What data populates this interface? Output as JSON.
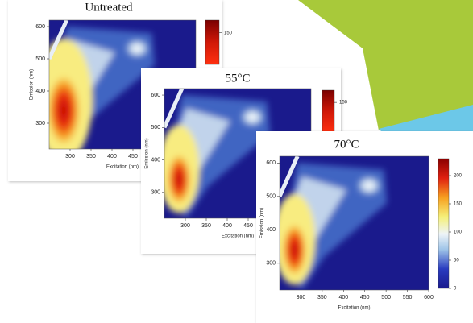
{
  "chart_data": [
    {
      "type": "heatmap",
      "title": "Untreated",
      "xlabel": "Excitation (nm)",
      "ylabel": "Emission (nm)",
      "xlim": [
        250,
        600
      ],
      "ylim": [
        220,
        620
      ],
      "xticks": [
        300,
        350,
        400,
        450
      ],
      "yticks": [
        300,
        400,
        500,
        600
      ],
      "colorbar": {
        "lim": [
          100,
          170
        ],
        "ticks": [
          150
        ]
      }
    },
    {
      "type": "heatmap",
      "title": "55°C",
      "xlabel": "Excitation (nm)",
      "ylabel": "Emission (nm)",
      "xlim": [
        250,
        600
      ],
      "ylim": [
        220,
        620
      ],
      "xticks": [
        300,
        350,
        400,
        450
      ],
      "yticks": [
        300,
        400,
        500,
        600
      ],
      "colorbar": {
        "lim": [
          100,
          170
        ],
        "ticks": [
          150
        ]
      }
    },
    {
      "type": "heatmap",
      "title": "70°C",
      "xlabel": "Excitation (nm)",
      "ylabel": "Emission (nm)",
      "xlim": [
        250,
        600
      ],
      "ylim": [
        220,
        620
      ],
      "xticks": [
        300,
        350,
        400,
        450,
        500,
        550,
        600
      ],
      "yticks": [
        300,
        400,
        500,
        600
      ],
      "colorbar": {
        "lim": [
          0,
          230
        ],
        "ticks": [
          0,
          50,
          100,
          150,
          200
        ]
      }
    }
  ]
}
